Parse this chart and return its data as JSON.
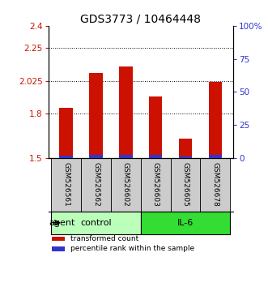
{
  "title": "GDS3773 / 10464448",
  "samples": [
    "GSM526561",
    "GSM526562",
    "GSM526602",
    "GSM526603",
    "GSM526605",
    "GSM526678"
  ],
  "transformed_counts": [
    1.84,
    2.08,
    2.12,
    1.92,
    1.63,
    2.02
  ],
  "percentile_ranks": [
    1.5,
    2.0,
    2.0,
    2.5,
    1.0,
    2.0
  ],
  "ylim_left": [
    1.5,
    2.4
  ],
  "yticks_left": [
    1.5,
    1.8,
    2.025,
    2.25,
    2.4
  ],
  "ytick_labels_left": [
    "1.5",
    "1.8",
    "2.025",
    "2.25",
    "2.4"
  ],
  "ylim_right": [
    0,
    100
  ],
  "yticks_right": [
    0,
    25,
    50,
    75,
    100
  ],
  "ytick_labels_right": [
    "0",
    "25",
    "50",
    "75",
    "100%"
  ],
  "bar_color_red": "#CC1100",
  "bar_color_blue": "#3333CC",
  "bar_width": 0.45,
  "groups": [
    {
      "label": "control",
      "indices": [
        0,
        1,
        2
      ],
      "color": "#BBFFBB"
    },
    {
      "label": "IL-6",
      "indices": [
        3,
        4,
        5
      ],
      "color": "#33DD33"
    }
  ],
  "agent_label": "agent",
  "legend_items": [
    {
      "label": "transformed count",
      "color": "#CC1100"
    },
    {
      "label": "percentile rank within the sample",
      "color": "#3333CC"
    }
  ],
  "grid_lines_at": [
    1.8,
    2.025,
    2.25
  ],
  "bg_color": "#FFFFFF",
  "label_box_color": "#CCCCCC",
  "title_fontsize": 10,
  "tick_fontsize": 7.5,
  "sample_fontsize": 6.5
}
